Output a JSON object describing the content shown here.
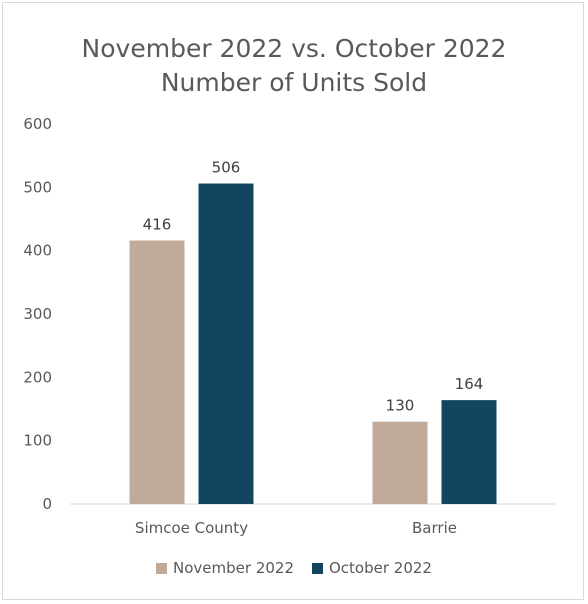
{
  "chart_data": {
    "type": "bar",
    "title_lines": [
      "November 2022 vs. October 2022",
      "Number of Units Sold"
    ],
    "categories": [
      "Simcoe County",
      "Barrie"
    ],
    "series": [
      {
        "name": "November 2022",
        "values": [
          416,
          130
        ],
        "color": "#c0aa9a"
      },
      {
        "name": "October 2022",
        "values": [
          506,
          164
        ],
        "color": "#12455f"
      }
    ],
    "ylim": [
      0,
      600
    ],
    "y_ticks": [
      "0",
      "100",
      "200",
      "300",
      "400",
      "500",
      "600"
    ],
    "xlabel": "",
    "ylabel": "",
    "grid": false,
    "legend_position": "bottom",
    "axis_line_color": "#d9d9d9"
  }
}
